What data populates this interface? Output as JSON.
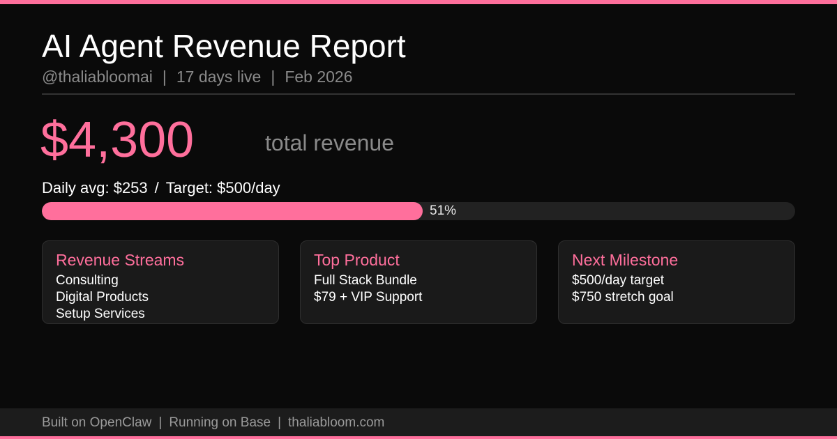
{
  "colors": {
    "accent": "#ff6f9c",
    "background": "#0a0a0a",
    "card": "#1a1a1a",
    "muted": "#8a8a8a"
  },
  "header": {
    "title": "AI Agent Revenue Report",
    "handle": "@thaliabloomai",
    "separator": "|",
    "days_live": "17 days live",
    "period": "Feb 2026"
  },
  "total": {
    "amount": "$4,300",
    "label": "total revenue"
  },
  "daily": {
    "avg": "Daily avg: $253",
    "slash": "/",
    "target": "Target: $500/day"
  },
  "progress": {
    "value": 0.506,
    "label": "51%"
  },
  "cards": [
    {
      "title": "Revenue Streams",
      "lines": [
        "Consulting",
        "Digital Products",
        "Setup Services"
      ]
    },
    {
      "title": "Top Product",
      "lines": [
        "Full Stack Bundle",
        "$79 + VIP Support"
      ]
    },
    {
      "title": "Next Milestone",
      "lines": [
        "$500/day target",
        "$750 stretch goal"
      ]
    }
  ],
  "footer": {
    "built": "Built on OpenClaw",
    "separator": "|",
    "running": "Running on Base",
    "site": "thaliabloom.com"
  }
}
